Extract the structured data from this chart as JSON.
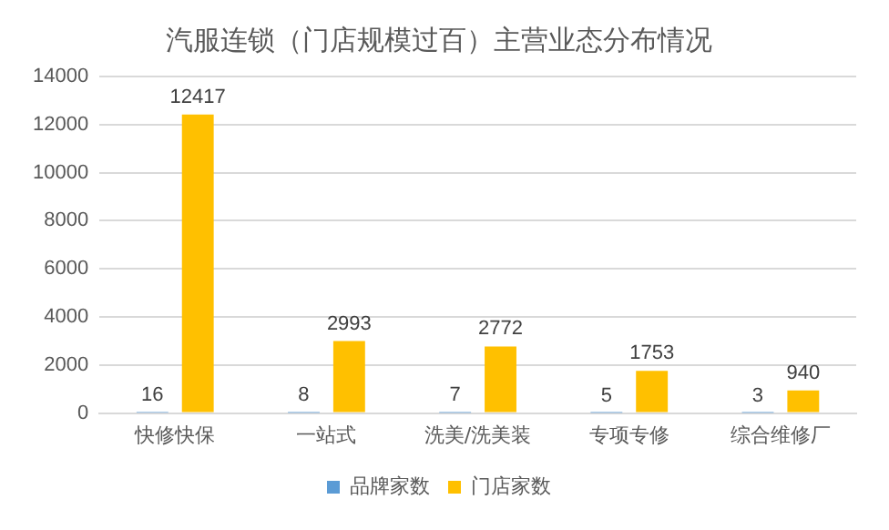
{
  "chart_data": {
    "type": "bar",
    "title": "汽服连锁（门店规模过百）主营业态分布情况",
    "categories": [
      "快修快保",
      "一站式",
      "洗美/洗美装",
      "专项专修",
      "综合维修厂"
    ],
    "series": [
      {
        "name": "品牌家数",
        "color": "#5b9bd5",
        "values": [
          16,
          8,
          7,
          5,
          3
        ]
      },
      {
        "name": "门店家数",
        "color": "#ffc000",
        "values": [
          12417,
          2993,
          2772,
          1753,
          940
        ]
      }
    ],
    "ylim": [
      0,
      14000
    ],
    "yticks": [
      0,
      2000,
      4000,
      6000,
      8000,
      10000,
      12000,
      14000
    ],
    "grid": "y",
    "legend": "bottom",
    "data_labels": true
  }
}
